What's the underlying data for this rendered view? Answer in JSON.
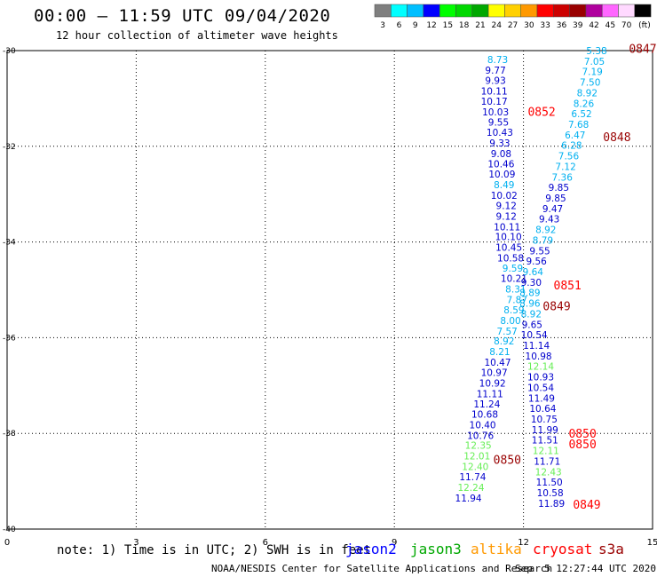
{
  "header": {
    "title": "00:00 — 11:59 UTC 09/04/2020",
    "subtitle": "12 hour collection of altimeter wave heights"
  },
  "colorbar": {
    "colors": [
      "#7f7f7f",
      "#00ffff",
      "#00bfff",
      "#0000ff",
      "#00ff00",
      "#00d800",
      "#00a800",
      "#ffff00",
      "#ffd000",
      "#ff9900",
      "#ff0000",
      "#cc0000",
      "#990000",
      "#b0009e",
      "#ff66ff",
      "#ffd9ff",
      "#000000"
    ],
    "labels": [
      "3",
      "6",
      "9",
      "12",
      "15",
      "18",
      "21",
      "24",
      "27",
      "30",
      "33",
      "36",
      "39",
      "42",
      "45",
      "70",
      "(ft)"
    ]
  },
  "chart_data": {
    "type": "scatter",
    "xlim": [
      0,
      15
    ],
    "ylim": [
      -40,
      -30
    ],
    "xticks": [
      "0",
      "3",
      "6",
      "9",
      "12",
      "15"
    ],
    "yticks": [
      "-30",
      "-32",
      "-34",
      "-36",
      "-38",
      "-40"
    ],
    "grid": true,
    "tracks": [
      {
        "name": "jason2",
        "color": "#0000cc",
        "points": [
          {
            "x": 11.4,
            "y": -30.19,
            "label": "8.73",
            "color": "#00b0f0"
          },
          {
            "x": 11.35,
            "y": -30.41,
            "label": "9.77",
            "color": "#0000cc"
          },
          {
            "x": 11.35,
            "y": -30.62,
            "label": "9.93",
            "color": "#0000cc"
          },
          {
            "x": 11.32,
            "y": -30.84,
            "label": "10.11",
            "color": "#0000cc"
          },
          {
            "x": 11.32,
            "y": -31.06,
            "label": "10.17",
            "color": "#0000cc"
          },
          {
            "x": 11.35,
            "y": -31.28,
            "label": "10.03",
            "color": "#0000cc"
          },
          {
            "x": 11.42,
            "y": -31.49,
            "label": "9.55",
            "color": "#0000cc"
          },
          {
            "x": 11.45,
            "y": -31.71,
            "label": "10.43",
            "color": "#0000cc"
          },
          {
            "x": 11.45,
            "y": -31.93,
            "label": "9.33",
            "color": "#0000cc"
          },
          {
            "x": 11.48,
            "y": -32.15,
            "label": "9.08",
            "color": "#0000cc"
          },
          {
            "x": 11.48,
            "y": -32.37,
            "label": "10.46",
            "color": "#0000cc"
          },
          {
            "x": 11.5,
            "y": -32.58,
            "label": "10.09",
            "color": "#0000cc"
          },
          {
            "x": 11.55,
            "y": -32.8,
            "label": "8.49",
            "color": "#00b0f0"
          },
          {
            "x": 11.55,
            "y": -33.02,
            "label": "10.02",
            "color": "#0000cc"
          },
          {
            "x": 11.6,
            "y": -33.24,
            "label": "9.12",
            "color": "#0000cc"
          },
          {
            "x": 11.6,
            "y": -33.46,
            "label": "9.12",
            "color": "#0000cc"
          },
          {
            "x": 11.62,
            "y": -33.68,
            "label": "10.11",
            "color": "#0000cc"
          },
          {
            "x": 11.65,
            "y": -33.89,
            "label": "10.10",
            "color": "#0000cc"
          },
          {
            "x": 11.66,
            "y": -34.11,
            "label": "10.45",
            "color": "#0000cc"
          },
          {
            "x": 11.7,
            "y": -34.33,
            "label": "10.58",
            "color": "#0000cc"
          },
          {
            "x": 11.75,
            "y": -34.55,
            "label": "9.59",
            "color": "#00b0f0"
          },
          {
            "x": 11.78,
            "y": -34.76,
            "label": "10.21",
            "color": "#0000cc"
          },
          {
            "x": 11.82,
            "y": -34.98,
            "label": "8.31",
            "color": "#00b0f0"
          },
          {
            "x": 11.85,
            "y": -35.2,
            "label": "7.87",
            "color": "#00b0f0"
          },
          {
            "x": 11.78,
            "y": -35.42,
            "label": "8.59",
            "color": "#00b0f0"
          },
          {
            "x": 11.7,
            "y": -35.64,
            "label": "8.00",
            "color": "#00b0f0"
          },
          {
            "x": 11.62,
            "y": -35.86,
            "label": "7.57",
            "color": "#00b0f0"
          },
          {
            "x": 11.55,
            "y": -36.07,
            "label": "8.92",
            "color": "#00b0f0"
          },
          {
            "x": 11.45,
            "y": -36.29,
            "label": "8.21",
            "color": "#00b0f0"
          },
          {
            "x": 11.4,
            "y": -36.51,
            "label": "10.47",
            "color": "#0000cc"
          },
          {
            "x": 11.32,
            "y": -36.73,
            "label": "10.97",
            "color": "#0000cc"
          },
          {
            "x": 11.28,
            "y": -36.95,
            "label": "10.92",
            "color": "#0000cc"
          },
          {
            "x": 11.22,
            "y": -37.17,
            "label": "11.11",
            "color": "#0000cc"
          },
          {
            "x": 11.15,
            "y": -37.38,
            "label": "11.24",
            "color": "#0000cc"
          },
          {
            "x": 11.1,
            "y": -37.6,
            "label": "10.68",
            "color": "#0000cc"
          },
          {
            "x": 11.05,
            "y": -37.82,
            "label": "10.40",
            "color": "#0000cc"
          },
          {
            "x": 11.0,
            "y": -38.04,
            "label": "10.76",
            "color": "#0000cc"
          },
          {
            "x": 10.95,
            "y": -38.25,
            "label": "12.35",
            "color": "#66ee55"
          },
          {
            "x": 10.92,
            "y": -38.47,
            "label": "12.01",
            "color": "#66ee55"
          },
          {
            "x": 10.88,
            "y": -38.69,
            "label": "12.40",
            "color": "#66ee55"
          },
          {
            "x": 10.82,
            "y": -38.91,
            "label": "11.74",
            "color": "#0000cc"
          },
          {
            "x": 10.78,
            "y": -39.13,
            "label": "12.24",
            "color": "#66ee55"
          },
          {
            "x": 10.72,
            "y": -39.35,
            "label": "11.94",
            "color": "#0000cc"
          }
        ]
      },
      {
        "name": "jason3",
        "color": "#0000cc",
        "points": [
          {
            "x": 13.7,
            "y": -30.0,
            "label": "5.38",
            "color": "#00b0f0"
          },
          {
            "x": 13.65,
            "y": -30.22,
            "label": "7.05",
            "color": "#00b0f0"
          },
          {
            "x": 13.6,
            "y": -30.44,
            "label": "7.19",
            "color": "#00b0f0"
          },
          {
            "x": 13.55,
            "y": -30.66,
            "label": "7.50",
            "color": "#00b0f0"
          },
          {
            "x": 13.48,
            "y": -30.88,
            "label": "8.92",
            "color": "#00b0f0"
          },
          {
            "x": 13.4,
            "y": -31.1,
            "label": "8.26",
            "color": "#00b0f0"
          },
          {
            "x": 13.35,
            "y": -31.32,
            "label": "6.52",
            "color": "#00b0f0"
          },
          {
            "x": 13.28,
            "y": -31.54,
            "label": "7.68",
            "color": "#00b0f0"
          },
          {
            "x": 13.2,
            "y": -31.76,
            "label": "6.47",
            "color": "#00b0f0"
          },
          {
            "x": 13.12,
            "y": -31.98,
            "label": "6.28",
            "color": "#00b0f0"
          },
          {
            "x": 13.05,
            "y": -32.2,
            "label": "7.56",
            "color": "#00b0f0"
          },
          {
            "x": 12.98,
            "y": -32.42,
            "label": "7.12",
            "color": "#00b0f0"
          },
          {
            "x": 12.9,
            "y": -32.64,
            "label": "7.36",
            "color": "#00b0f0"
          },
          {
            "x": 12.82,
            "y": -32.86,
            "label": "9.85",
            "color": "#0000cc"
          },
          {
            "x": 12.75,
            "y": -33.08,
            "label": "9.85",
            "color": "#0000cc"
          },
          {
            "x": 12.68,
            "y": -33.3,
            "label": "9.47",
            "color": "#0000cc"
          },
          {
            "x": 12.6,
            "y": -33.52,
            "label": "9.43",
            "color": "#0000cc"
          },
          {
            "x": 12.52,
            "y": -33.74,
            "label": "8.92",
            "color": "#00b0f0"
          },
          {
            "x": 12.45,
            "y": -33.96,
            "label": "8.79",
            "color": "#00b0f0"
          },
          {
            "x": 12.38,
            "y": -34.18,
            "label": "9.55",
            "color": "#0000cc"
          },
          {
            "x": 12.3,
            "y": -34.4,
            "label": "9.56",
            "color": "#0000cc"
          },
          {
            "x": 12.22,
            "y": -34.62,
            "label": "9.64",
            "color": "#00b0f0"
          },
          {
            "x": 12.18,
            "y": -34.84,
            "label": "9.30",
            "color": "#0000cc"
          },
          {
            "x": 12.15,
            "y": -35.06,
            "label": "8.89",
            "color": "#00b0f0"
          },
          {
            "x": 12.15,
            "y": -35.28,
            "label": "8.96",
            "color": "#00b0f0"
          },
          {
            "x": 12.18,
            "y": -35.5,
            "label": "8.92",
            "color": "#00b0f0"
          },
          {
            "x": 12.2,
            "y": -35.72,
            "label": "9.65",
            "color": "#0000cc"
          },
          {
            "x": 12.25,
            "y": -35.94,
            "label": "10.54",
            "color": "#0000cc"
          },
          {
            "x": 12.3,
            "y": -36.16,
            "label": "11.14",
            "color": "#0000cc"
          },
          {
            "x": 12.35,
            "y": -36.38,
            "label": "10.98",
            "color": "#0000cc"
          },
          {
            "x": 12.4,
            "y": -36.6,
            "label": "12.14",
            "color": "#66ee55"
          },
          {
            "x": 12.4,
            "y": -36.82,
            "label": "10.93",
            "color": "#0000cc"
          },
          {
            "x": 12.4,
            "y": -37.04,
            "label": "10.54",
            "color": "#0000cc"
          },
          {
            "x": 12.42,
            "y": -37.26,
            "label": "11.49",
            "color": "#0000cc"
          },
          {
            "x": 12.45,
            "y": -37.48,
            "label": "10.64",
            "color": "#0000cc"
          },
          {
            "x": 12.48,
            "y": -37.7,
            "label": "10.75",
            "color": "#0000cc"
          },
          {
            "x": 12.5,
            "y": -37.92,
            "label": "11.99",
            "color": "#0000cc"
          },
          {
            "x": 12.5,
            "y": -38.14,
            "label": "11.51",
            "color": "#0000cc"
          },
          {
            "x": 12.52,
            "y": -38.36,
            "label": "12.11",
            "color": "#66ee55"
          },
          {
            "x": 12.55,
            "y": -38.58,
            "label": "11.71",
            "color": "#0000cc"
          },
          {
            "x": 12.58,
            "y": -38.8,
            "label": "12.43",
            "color": "#66ee55"
          },
          {
            "x": 12.6,
            "y": -39.02,
            "label": "11.50",
            "color": "#0000cc"
          },
          {
            "x": 12.62,
            "y": -39.24,
            "label": "10.58",
            "color": "#0000cc"
          },
          {
            "x": 12.65,
            "y": -39.46,
            "label": "11.89",
            "color": "#0000cc"
          }
        ]
      }
    ],
    "time_labels": [
      {
        "x": 14.45,
        "y": -29.95,
        "label": "0847",
        "color": "#990000"
      },
      {
        "x": 12.1,
        "y": -31.27,
        "label": "0852",
        "color": "#ff0000"
      },
      {
        "x": 13.85,
        "y": -31.8,
        "label": "0848",
        "color": "#990000"
      },
      {
        "x": 12.7,
        "y": -34.9,
        "label": "0851",
        "color": "#ff0000"
      },
      {
        "x": 12.45,
        "y": -35.33,
        "label": "0849",
        "color": "#990000"
      },
      {
        "x": 13.05,
        "y": -38.0,
        "label": "0850",
        "color": "#ff0000"
      },
      {
        "x": 13.05,
        "y": -38.22,
        "label": "0850",
        "color": "#ff0000"
      },
      {
        "x": 11.3,
        "y": -38.54,
        "label": "0850",
        "color": "#990000"
      },
      {
        "x": 13.15,
        "y": -39.48,
        "label": "0849",
        "color": "#ff0000"
      }
    ]
  },
  "footer": {
    "note": "note: 1) Time is in UTC; 2) SWH is in feet",
    "legend": [
      {
        "name": "jason2",
        "color": "#0000ff"
      },
      {
        "name": "jason3",
        "color": "#00a800"
      },
      {
        "name": "altika",
        "color": "#ff9900"
      },
      {
        "name": "cryosat",
        "color": "#ff0000"
      },
      {
        "name": "s3a",
        "color": "#990000"
      }
    ],
    "credit": "NOAA/NESDIS Center for Satellite Applications and Research",
    "timestamp": "Sep  5 12:27:44 UTC 2020"
  }
}
